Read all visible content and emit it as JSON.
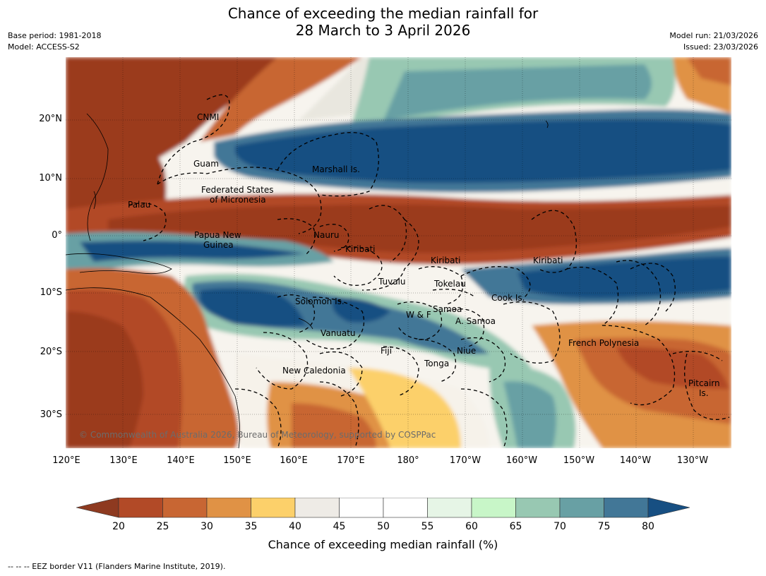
{
  "title_line1": "Chance of exceeding the median rainfall for",
  "title_line2": "28 March to 3 April 2026",
  "meta_left": {
    "base_period": "Base period: 1981-2018",
    "model": "Model: ACCESS-S2"
  },
  "meta_right": {
    "model_run": "Model run: 21/03/2026",
    "issued": "Issued: 23/03/2026"
  },
  "lat_labels": [
    "20°N",
    "10°N",
    "0°",
    "10°S",
    "20°S",
    "30°S"
  ],
  "lon_labels": [
    "120°E",
    "130°E",
    "140°E",
    "150°E",
    "160°E",
    "170°E",
    "180°",
    "170°W",
    "160°W",
    "150°W",
    "140°W",
    "130°W"
  ],
  "regions": {
    "cnmi": "CNMI",
    "guam": "Guam",
    "marshall": "Marshall Is.",
    "fsm_1": "Federated States",
    "fsm_2": "of Micronesia",
    "palau": "Palau",
    "png_1": "Papua New",
    "png_2": "Guinea",
    "nauru": "Nauru",
    "kiribati_w": "Kiribati",
    "kiribati_c": "Kiribati",
    "kiribati_e": "Kiribati",
    "tuvalu": "Tuvalu",
    "tokelau": "Tokelau",
    "solomon": "Solomon Is.",
    "cook": "Cook Is.",
    "samoa": "Samoa",
    "wf": "W & F",
    "asamoa": "A. Samoa",
    "vanuatu": "Vanuatu",
    "fiji": "Fiji",
    "niue": "Niue",
    "fp": "French Polynesia",
    "tonga": "Tonga",
    "nc": "New Caledonia",
    "pitcairn_1": "Pitcairn",
    "pitcairn_2": "Is."
  },
  "copyright": "© Commonwealth of Australia 2026, Bureau of Meteorology, supported by COSPPac",
  "colorbar": {
    "ticks": [
      "20",
      "25",
      "30",
      "35",
      "40",
      "45",
      "50",
      "55",
      "60",
      "65",
      "70",
      "75",
      "80"
    ],
    "colors": [
      "#8e3a20",
      "#b24a27",
      "#c86633",
      "#e09245",
      "#fcd06a",
      "#eeebe6",
      "#ffffff",
      "#ffffff",
      "#e6f5e6",
      "#c8f6c8",
      "#98c8b2",
      "#68a0a4",
      "#427797",
      "#174f82"
    ],
    "title": "Chance of exceeding median rainfall (%)"
  },
  "footnote": "--  --  -- EEZ border V11 (Flanders Marine Institute, 2019)."
}
